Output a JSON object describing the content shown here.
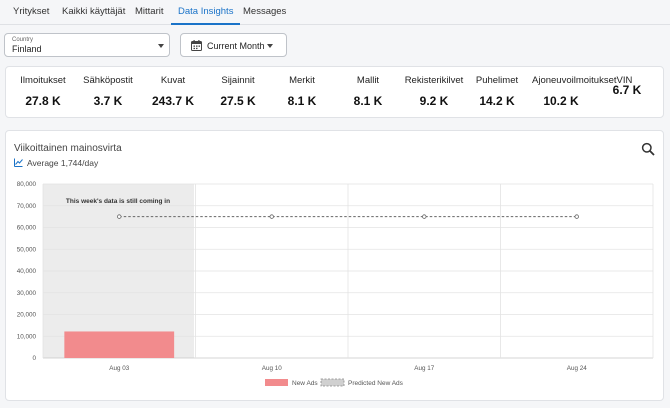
{
  "tabs": [
    {
      "label": "Yritykset",
      "active": false
    },
    {
      "label": "Kaikki käyttäjät",
      "active": false
    },
    {
      "label": "Mittarit",
      "active": false
    },
    {
      "label": "Data Insights",
      "active": true
    },
    {
      "label": "Messages",
      "active": false
    }
  ],
  "filters": {
    "country_label": "Country",
    "country_value": "Finland",
    "period_value": "Current Month"
  },
  "stats": [
    {
      "name": "Ilmoitukset",
      "value": "27.8 K"
    },
    {
      "name": "Sähköpostit",
      "value": "3.7 K"
    },
    {
      "name": "Kuvat",
      "value": "243.7 K"
    },
    {
      "name": "Sijainnit",
      "value": "27.5 K"
    },
    {
      "name": "Merkit",
      "value": "8.1 K"
    },
    {
      "name": "Mallit",
      "value": "8.1 K"
    },
    {
      "name": "Rekisterikilvet",
      "value": "9.2 K"
    },
    {
      "name": "Puhelimet",
      "value": "14.2 K"
    },
    {
      "name": "AjoneuvoilmoituksetVIN",
      "value": "10.2 K"
    },
    {
      "name": "",
      "value": "6.7 K"
    }
  ],
  "chart_card": {
    "title": "Viikoittainen mainosvirta",
    "average": "Average 1,744/day",
    "notice": "This week's data is still coming in"
  },
  "colors": {
    "accent": "#1a73c8",
    "new_ads": "#f28b8d",
    "shaded_week": "#ececec",
    "predicted": "#666666"
  },
  "chart_data": {
    "type": "bar",
    "categories": [
      "Aug 03",
      "Aug 10",
      "Aug 17",
      "Aug 24"
    ],
    "series": [
      {
        "name": "New Ads",
        "type": "bar",
        "values": [
          12200,
          null,
          null,
          null
        ]
      },
      {
        "name": "Predicted New Ads",
        "type": "line",
        "style": "dashed",
        "values": [
          65000,
          65000,
          65000,
          65000
        ]
      }
    ],
    "yticks": [
      0,
      10000,
      20000,
      30000,
      40000,
      50000,
      60000,
      70000,
      80000
    ],
    "ytick_labels": [
      "0",
      "10,000",
      "20,000",
      "30,000",
      "40,000",
      "50,000",
      "60,000",
      "70,000",
      "80,000"
    ],
    "ylim": [
      0,
      80000
    ],
    "grid": true,
    "legend": "bottom-center",
    "shaded_category": "Aug 03"
  }
}
